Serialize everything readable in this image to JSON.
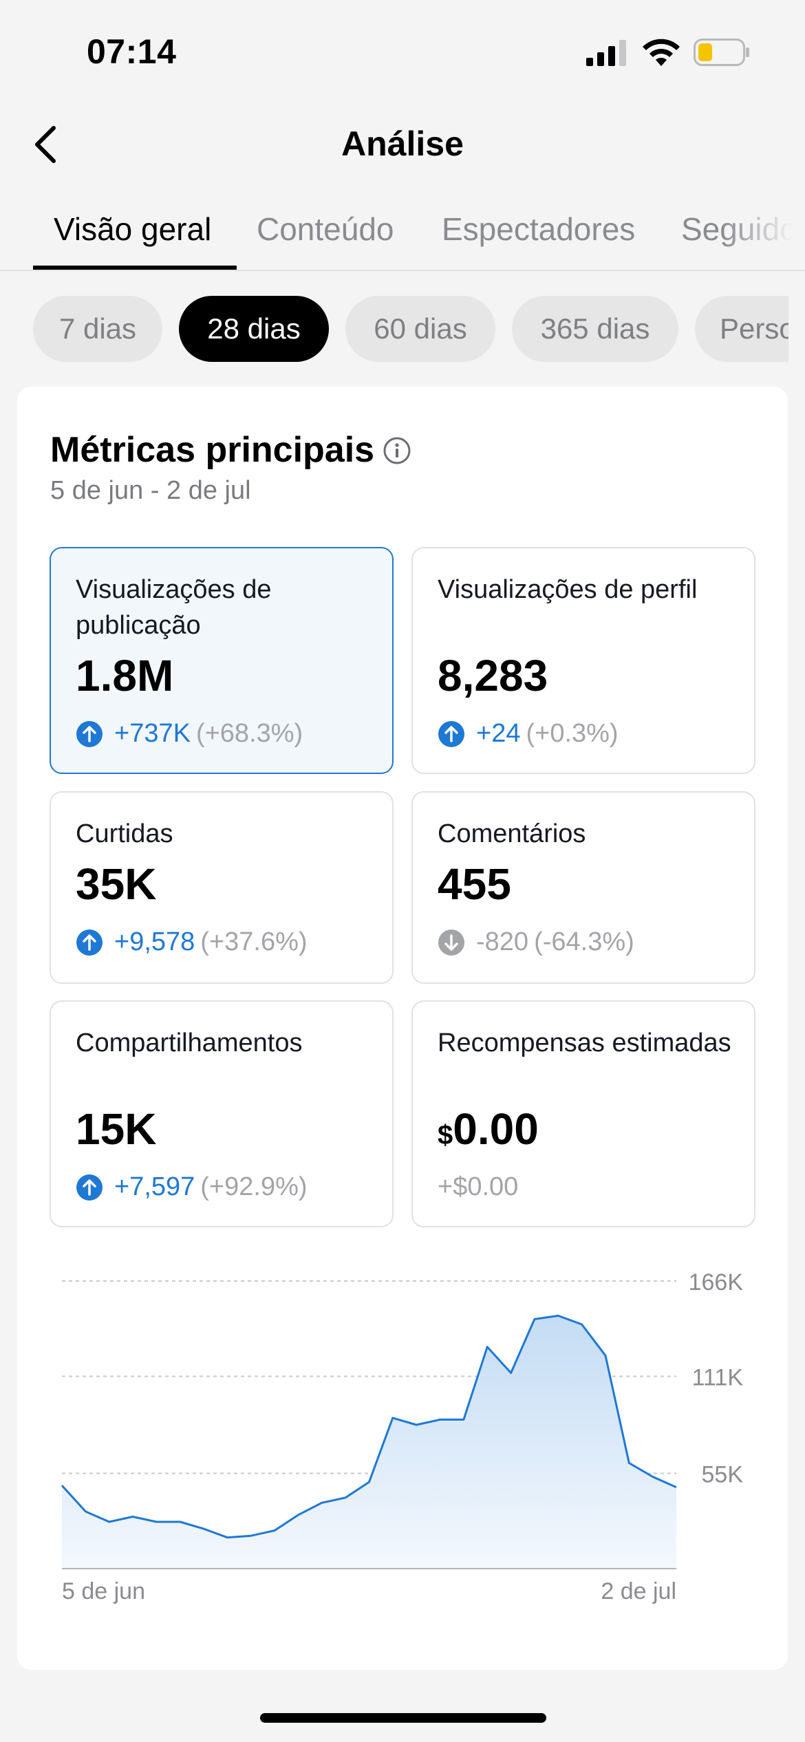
{
  "status_bar": {
    "time": "07:14"
  },
  "header": {
    "title": "Análise"
  },
  "tabs": [
    {
      "label": "Visão geral",
      "active": true
    },
    {
      "label": "Conteúdo",
      "active": false
    },
    {
      "label": "Espectadores",
      "active": false
    },
    {
      "label": "Seguido",
      "active": false
    }
  ],
  "ranges": [
    {
      "label": "7 dias",
      "active": false
    },
    {
      "label": "28 dias",
      "active": true
    },
    {
      "label": "60 dias",
      "active": false
    },
    {
      "label": "365 dias",
      "active": false
    },
    {
      "label": "Perso",
      "active": false
    }
  ],
  "metrics_card": {
    "title": "Métricas principais",
    "date_range": "5 de jun - 2 de jul",
    "metrics": [
      {
        "label": "Visualizações de publicação",
        "value": "1.8M",
        "change": "+737K",
        "change_pct": "(+68.3%)",
        "direction": "up",
        "selected": true
      },
      {
        "label": "Visualizações de perfil",
        "value": "8,283",
        "change": "+24",
        "change_pct": "(+0.3%)",
        "direction": "up",
        "selected": false
      },
      {
        "label": "Curtidas",
        "value": "35K",
        "change": "+9,578",
        "change_pct": "(+37.6%)",
        "direction": "up",
        "selected": false
      },
      {
        "label": "Comentários",
        "value": "455",
        "change": "-820",
        "change_pct": "(-64.3%)",
        "direction": "down",
        "selected": false
      },
      {
        "label": "Compartilhamentos",
        "value": "15K",
        "change": "+7,597",
        "change_pct": "(+92.9%)",
        "direction": "up",
        "selected": false
      },
      {
        "label": "Recompensas estimadas",
        "currency": "$",
        "value": "0.00",
        "change": "+$0.00",
        "change_pct": "",
        "direction": "neutral",
        "selected": false
      }
    ]
  },
  "colors": {
    "accent": "#1e78d4",
    "down": "#a3a4a8",
    "selected_bg": "#f2f7fc"
  },
  "chart_data": {
    "type": "area",
    "x_start_label": "5 de jun",
    "x_end_label": "2 de jul",
    "y_tick_labels": [
      "166K",
      "111K",
      "55K"
    ],
    "y_ticks": [
      166,
      111,
      55
    ],
    "ylim": [
      0,
      166
    ],
    "grid": true,
    "series": [
      {
        "values": [
          48,
          33,
          27,
          30,
          27,
          27,
          23,
          18,
          19,
          22,
          31,
          38,
          41,
          50,
          87,
          83,
          86,
          86,
          128,
          113,
          144,
          146,
          141,
          123,
          61,
          53,
          47
        ]
      }
    ]
  }
}
